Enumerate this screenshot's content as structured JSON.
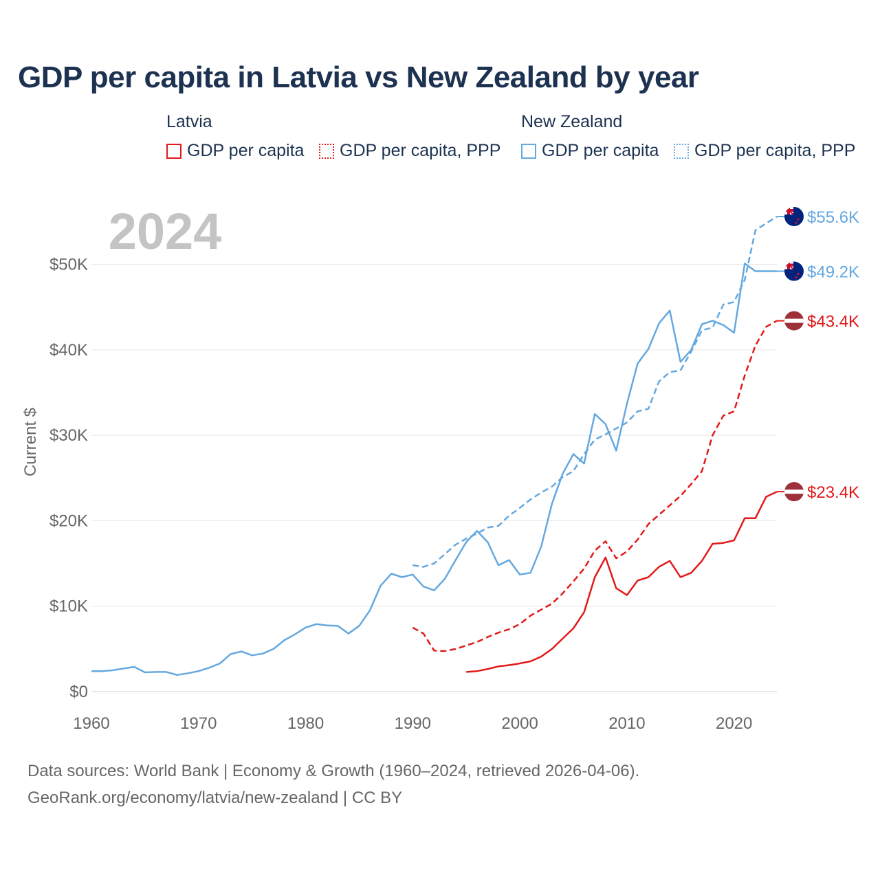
{
  "chart_data": {
    "type": "line",
    "title": "GDP per capita in Latvia vs New Zealand by year",
    "year_label": "2024",
    "ylabel": "Current $",
    "xlabel": "",
    "xlim": [
      1960,
      2025
    ],
    "ylim": [
      0,
      57000
    ],
    "x_ticks": [
      1960,
      1970,
      1980,
      1990,
      2000,
      2010,
      2020
    ],
    "x_tick_labels": [
      "1960",
      "1970",
      "1980",
      "1990",
      "2000",
      "2010",
      "2020"
    ],
    "y_ticks": [
      0,
      10000,
      20000,
      30000,
      40000,
      50000
    ],
    "y_tick_labels": [
      "$0",
      "$10K",
      "$20K",
      "$30K",
      "$40K",
      "$50K"
    ],
    "grid": true,
    "legend": {
      "groups": [
        {
          "title": "Latvia",
          "items": [
            "GDP per capita",
            "GDP per capita, PPP"
          ]
        },
        {
          "title": "New Zealand",
          "items": [
            "GDP per capita",
            "GDP per capita, PPP"
          ]
        }
      ]
    },
    "series": [
      {
        "name": "New Zealand GDP per capita",
        "country": "New Zealand",
        "color": "#64a8e0",
        "style": "solid",
        "end_label": "$49.2K",
        "x": [
          1960,
          1961,
          1962,
          1963,
          1964,
          1965,
          1966,
          1967,
          1968,
          1969,
          1970,
          1971,
          1972,
          1973,
          1974,
          1975,
          1976,
          1977,
          1978,
          1979,
          1980,
          1981,
          1982,
          1983,
          1984,
          1985,
          1986,
          1987,
          1988,
          1989,
          1990,
          1991,
          1992,
          1993,
          1994,
          1995,
          1996,
          1997,
          1998,
          1999,
          2000,
          2001,
          2002,
          2003,
          2004,
          2005,
          2006,
          2007,
          2008,
          2009,
          2010,
          2011,
          2012,
          2013,
          2014,
          2015,
          2016,
          2017,
          2018,
          2019,
          2020,
          2021,
          2022,
          2023,
          2024
        ],
        "values": [
          2400,
          2400,
          2500,
          2700,
          2900,
          2250,
          2300,
          2300,
          1950,
          2150,
          2400,
          2800,
          3300,
          4400,
          4700,
          4250,
          4450,
          5000,
          6000,
          6700,
          7500,
          7900,
          7750,
          7700,
          6800,
          7700,
          9500,
          12400,
          13800,
          13400,
          13700,
          12300,
          11850,
          13200,
          15400,
          17500,
          18800,
          17500,
          14800,
          15400,
          13700,
          13900,
          17000,
          22000,
          25500,
          27800,
          26700,
          32500,
          31300,
          28200,
          33700,
          38400,
          40100,
          43100,
          44600,
          38600,
          40000,
          43000,
          43400,
          42900,
          42000,
          50100,
          49200,
          49200,
          49200
        ]
      },
      {
        "name": "New Zealand GDP per capita, PPP",
        "country": "New Zealand",
        "color": "#64a8e0",
        "style": "dashed",
        "end_label": "$55.6K",
        "x": [
          1990,
          1991,
          1992,
          1993,
          1994,
          1995,
          1996,
          1997,
          1998,
          1999,
          2000,
          2001,
          2002,
          2003,
          2004,
          2005,
          2006,
          2007,
          2008,
          2009,
          2010,
          2011,
          2012,
          2013,
          2014,
          2015,
          2016,
          2017,
          2018,
          2019,
          2020,
          2021,
          2022,
          2023,
          2024
        ],
        "values": [
          14800,
          14600,
          15000,
          16100,
          17200,
          17900,
          18500,
          19200,
          19400,
          20600,
          21500,
          22500,
          23300,
          24000,
          25100,
          25800,
          27800,
          29500,
          30100,
          30800,
          31500,
          32800,
          33100,
          36300,
          37400,
          37600,
          39800,
          42300,
          42600,
          45300,
          45600,
          48200,
          54000,
          54800,
          55600
        ]
      },
      {
        "name": "Latvia GDP per capita",
        "country": "Latvia",
        "color": "#e31919",
        "style": "solid",
        "end_label": "$23.4K",
        "x": [
          1995,
          1996,
          1997,
          1998,
          1999,
          2000,
          2001,
          2002,
          2003,
          2004,
          2005,
          2006,
          2007,
          2008,
          2009,
          2010,
          2011,
          2012,
          2013,
          2014,
          2015,
          2016,
          2017,
          2018,
          2019,
          2020,
          2021,
          2022,
          2023,
          2024
        ],
        "values": [
          2300,
          2400,
          2650,
          2950,
          3100,
          3300,
          3550,
          4100,
          5000,
          6200,
          7400,
          9300,
          13400,
          15700,
          12100,
          11300,
          13000,
          13400,
          14600,
          15300,
          13400,
          13900,
          15300,
          17300,
          17400,
          17700,
          20300,
          20300,
          22800,
          23400
        ]
      },
      {
        "name": "Latvia GDP per capita, PPP",
        "country": "Latvia",
        "color": "#e31919",
        "style": "dashed",
        "end_label": "$43.4K",
        "x": [
          1990,
          1991,
          1992,
          1993,
          1994,
          1995,
          1996,
          1997,
          1998,
          1999,
          2000,
          2001,
          2002,
          2003,
          2004,
          2005,
          2006,
          2007,
          2008,
          2009,
          2010,
          2011,
          2012,
          2013,
          2014,
          2015,
          2016,
          2017,
          2018,
          2019,
          2020,
          2021,
          2022,
          2023,
          2024
        ],
        "values": [
          7500,
          6800,
          4800,
          4750,
          5000,
          5400,
          5800,
          6400,
          6900,
          7300,
          7900,
          8900,
          9600,
          10300,
          11500,
          12900,
          14400,
          16500,
          17600,
          15600,
          16400,
          17800,
          19600,
          20700,
          21800,
          22900,
          24300,
          25800,
          30000,
          32300,
          32800,
          37000,
          40500,
          42700,
          43400
        ]
      }
    ]
  },
  "legend_labels": {
    "latvia_title": "Latvia",
    "nz_title": "New Zealand",
    "latvia_gdp": "GDP per capita",
    "latvia_ppp": "GDP per capita, PPP",
    "nz_gdp": "GDP per capita",
    "nz_ppp": "GDP per capita, PPP"
  },
  "footer": {
    "line1": "Data sources: World Bank | Economy & Growth (1960–2024, retrieved 2026-04-06).",
    "line2": "GeoRank.org/economy/latvia/new-zealand | CC BY"
  },
  "colors": {
    "latvia": "#e31919",
    "new_zealand": "#64a8e0",
    "title": "#1c3250",
    "grid": "#e6e6e6",
    "tick_text": "#666666",
    "year_watermark": "#c4c4c4",
    "latvia_flag": "#9e3039",
    "nz_flag": "#00247d"
  }
}
